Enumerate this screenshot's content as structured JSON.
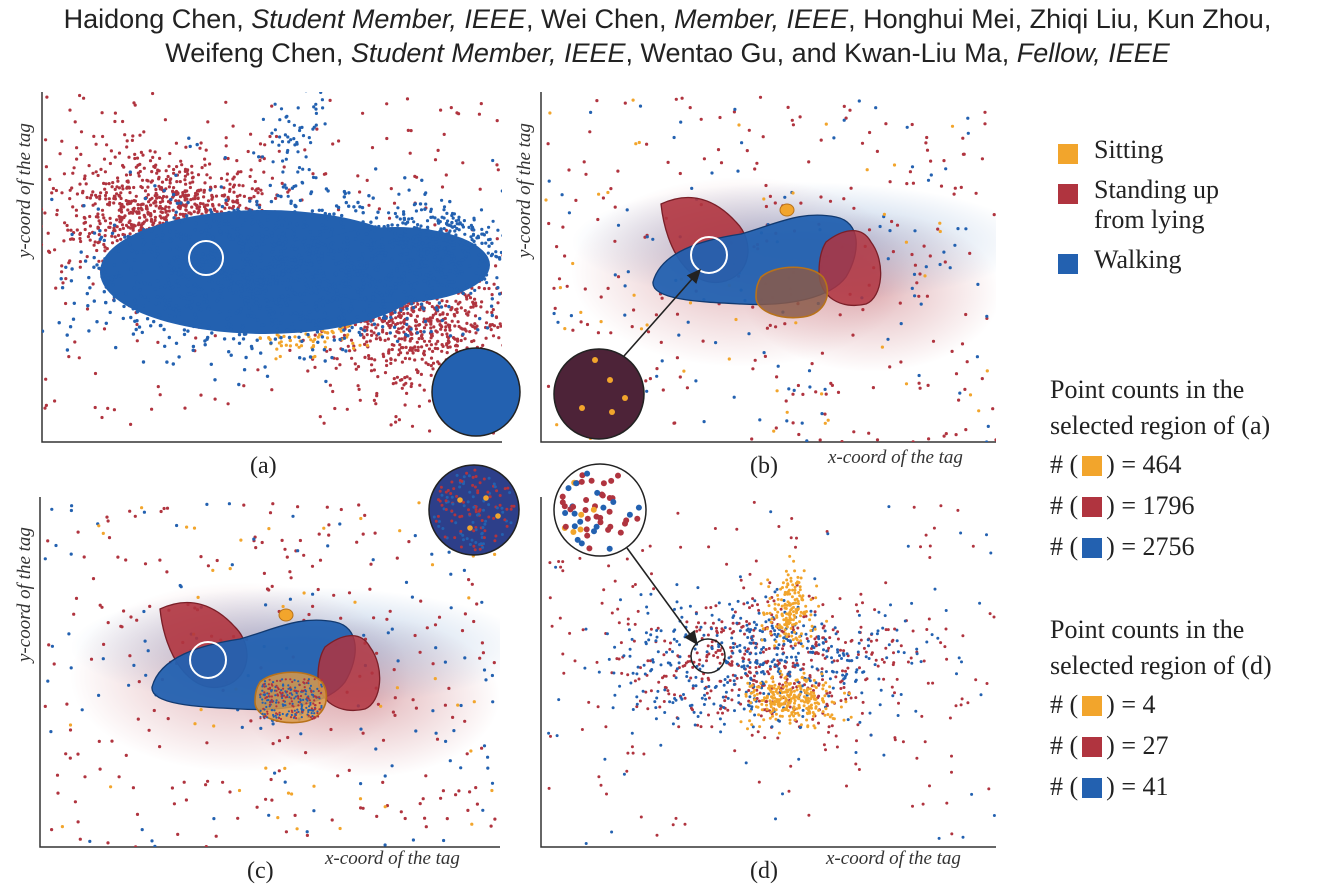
{
  "authors": {
    "line1": [
      {
        "t": "Haidong Chen, ",
        "i": false
      },
      {
        "t": "Student Member, IEEE",
        "i": true
      },
      {
        "t": ", Wei Chen, ",
        "i": false
      },
      {
        "t": "Member, IEEE",
        "i": true
      },
      {
        "t": ", Honghui Mei, Zhiqi Liu, Kun Zhou,",
        "i": false
      }
    ],
    "line2": [
      {
        "t": "Weifeng Chen, ",
        "i": false
      },
      {
        "t": "Student Member, IEEE",
        "i": true
      },
      {
        "t": ", Wentao Gu, and Kwan-Liu Ma, ",
        "i": false
      },
      {
        "t": "Fellow, IEEE",
        "i": true
      }
    ]
  },
  "colors": {
    "sitting": "#f2a52c",
    "standing": "#b0343f",
    "walking": "#2361b0",
    "axis": "#333333"
  },
  "axis_labels": {
    "x": "x-coord of the tag",
    "y": "y-coord of the tag"
  },
  "panels": [
    {
      "id": "a",
      "caption": "(a)"
    },
    {
      "id": "b",
      "caption": "(b)"
    },
    {
      "id": "c",
      "caption": "(c)"
    },
    {
      "id": "d",
      "caption": "(d)"
    }
  ],
  "legend": [
    {
      "key": "sitting",
      "label": "Sitting"
    },
    {
      "key": "standing",
      "label": "Standing up from lying"
    },
    {
      "key": "walking",
      "label": "Walking"
    }
  ],
  "counts_a": {
    "title_line1": "Point counts in the",
    "title_line2": "selected region of (a)",
    "rows": [
      {
        "key": "sitting",
        "prefix": "# (",
        "suffix": ") = 464"
      },
      {
        "key": "standing",
        "prefix": "# (",
        "suffix": ") = 1796"
      },
      {
        "key": "walking",
        "prefix": "# (",
        "suffix": ") = 2756"
      }
    ]
  },
  "counts_d": {
    "title_line1": "Point counts in the",
    "title_line2": "selected region of (d)",
    "rows": [
      {
        "key": "sitting",
        "prefix": "# (",
        "suffix": ") = 4"
      },
      {
        "key": "standing",
        "prefix": "# (",
        "suffix": ") = 27"
      },
      {
        "key": "walking",
        "prefix": "# (",
        "suffix": ") = 41"
      }
    ]
  },
  "chart_data": [
    {
      "type": "scatter",
      "panel": "(a)",
      "xlabel": "",
      "ylabel": "y-coord of the tag",
      "series": [
        {
          "name": "Sitting"
        },
        {
          "name": "Standing up from lying"
        },
        {
          "name": "Walking"
        }
      ],
      "selected_region_counts": {
        "Sitting": 464,
        "Standing up from lying": 1796,
        "Walking": 2756
      }
    },
    {
      "type": "scatter",
      "panel": "(b)",
      "xlabel": "x-coord of the tag",
      "ylabel": "y-coord of the tag",
      "series": [
        {
          "name": "Sitting"
        },
        {
          "name": "Standing up from lying"
        },
        {
          "name": "Walking"
        }
      ]
    },
    {
      "type": "scatter",
      "panel": "(c)",
      "xlabel": "x-coord of the tag",
      "ylabel": "y-coord of the tag",
      "series": [
        {
          "name": "Sitting"
        },
        {
          "name": "Standing up from lying"
        },
        {
          "name": "Walking"
        }
      ]
    },
    {
      "type": "scatter",
      "panel": "(d)",
      "xlabel": "x-coord of the tag",
      "ylabel": "",
      "series": [
        {
          "name": "Sitting"
        },
        {
          "name": "Standing up from lying"
        },
        {
          "name": "Walking"
        }
      ],
      "selected_region_counts": {
        "Sitting": 4,
        "Standing up from lying": 27,
        "Walking": 41
      }
    }
  ]
}
